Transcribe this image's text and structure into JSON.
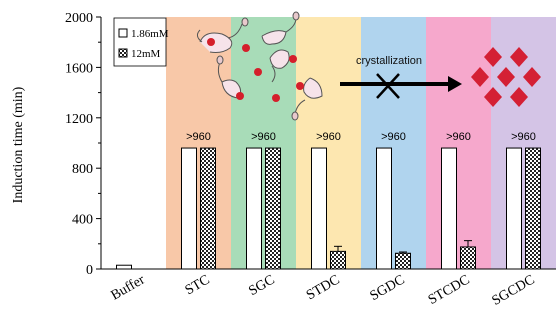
{
  "chart_data": {
    "type": "bar",
    "ylabel": "Induction time (min)",
    "xlabel": "",
    "ylim": [
      0,
      2000
    ],
    "yticks": [
      0,
      400,
      800,
      1200,
      1600,
      2000
    ],
    "categories": [
      "Buffer",
      "STC",
      "SGC",
      "STDC",
      "SGDC",
      "STCDC",
      "SGCDC"
    ],
    "series": [
      {
        "name": "1.86mM",
        "values": [
          30,
          960,
          960,
          960,
          960,
          960,
          960
        ],
        "errors": [
          0,
          0,
          0,
          0,
          0,
          0,
          0
        ]
      },
      {
        "name": "12mM",
        "values": [
          null,
          960,
          960,
          140,
          125,
          175,
          960
        ],
        "errors": [
          0,
          0,
          0,
          40,
          10,
          50,
          0
        ]
      }
    ],
    "value_labels": [
      "",
      ">960",
      ">960",
      ">960",
      ">960",
      ">960",
      ">960"
    ],
    "background_colors": [
      "#ffffff",
      "#f8c8a8",
      "#a8dcb8",
      "#fde7b0",
      "#b0d4ee",
      "#f6a8cc",
      "#d4c4e6"
    ],
    "legend_position": "top-left",
    "annotation": {
      "text": "crystallization",
      "meaning": "crystallization blocked",
      "crystal_color": "#d42034",
      "micelle_dot_color": "#d41f2b"
    }
  }
}
